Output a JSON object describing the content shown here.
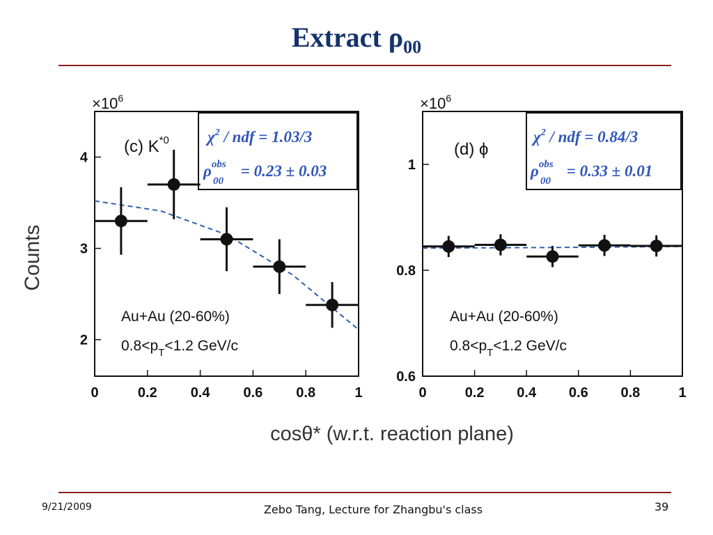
{
  "slide": {
    "title_main": "Extract ρ",
    "title_sub": "00",
    "date": "9/21/2009",
    "footer": "Zebo Tang, Lecture for Zhangbu's class",
    "page_number": "39",
    "rule_color": "#8a1f1f",
    "title_color": "#15336b"
  },
  "chart_data": [
    {
      "type": "scatter",
      "panel_label": "(c) K",
      "panel_label_sup": "*0",
      "scale_label": "×10",
      "scale_sup": "6",
      "ylabel": "Counts",
      "xlabel": "cosθ* (w.r.t. reaction plane)",
      "xlim": [
        0,
        1
      ],
      "ylim": [
        1.6,
        4.5
      ],
      "xticks": [
        0,
        0.2,
        0.4,
        0.6,
        0.8,
        1
      ],
      "xtick_labels": [
        "0",
        "0.2",
        "0.4",
        "0.6",
        "0.8",
        "1"
      ],
      "yticks": [
        2,
        3,
        4
      ],
      "ytick_labels": [
        "2",
        "3",
        "4"
      ],
      "points": [
        {
          "x": 0.1,
          "y": 3.3,
          "xerr": 0.1,
          "yerr": 0.37
        },
        {
          "x": 0.3,
          "y": 3.7,
          "xerr": 0.1,
          "yerr": 0.38
        },
        {
          "x": 0.5,
          "y": 3.1,
          "xerr": 0.1,
          "yerr": 0.35
        },
        {
          "x": 0.7,
          "y": 2.8,
          "xerr": 0.1,
          "yerr": 0.3
        },
        {
          "x": 0.9,
          "y": 2.38,
          "xerr": 0.1,
          "yerr": 0.25
        }
      ],
      "fit": {
        "style": "dashed",
        "color": "#2f5fb0",
        "x": [
          0,
          0.25,
          0.5,
          0.75,
          1
        ],
        "y": [
          3.52,
          3.41,
          3.15,
          2.71,
          2.11
        ]
      },
      "annotation": {
        "chi_prefix": "χ",
        "chi_sup": "2",
        "chi_rest": " / ndf = 1.03/3",
        "rho": "ρ",
        "rho_sup": "obs",
        "rho_sub": "00",
        "rho_rest": " = 0.23 ± 0.03",
        "color": "#2f55b8"
      },
      "system_label": "Au+Au (20-60%)",
      "pt_label_a": "0.8<p",
      "pt_label_sub": "T",
      "pt_label_b": "<1.2 GeV/c"
    },
    {
      "type": "scatter",
      "panel_label": "(d) ϕ",
      "scale_label": "×10",
      "scale_sup": "6",
      "xlim": [
        0,
        1
      ],
      "ylim": [
        0.6,
        1.1
      ],
      "xticks": [
        0,
        0.2,
        0.4,
        0.6,
        0.8,
        1
      ],
      "xtick_labels": [
        "0",
        "0.2",
        "0.4",
        "0.6",
        "0.8",
        "1"
      ],
      "yticks": [
        0.6,
        0.8,
        1
      ],
      "ytick_labels": [
        "0.6",
        "0.8",
        "1"
      ],
      "points": [
        {
          "x": 0.1,
          "y": 0.845,
          "xerr": 0.1,
          "yerr": 0.02
        },
        {
          "x": 0.3,
          "y": 0.848,
          "xerr": 0.1,
          "yerr": 0.02
        },
        {
          "x": 0.5,
          "y": 0.826,
          "xerr": 0.1,
          "yerr": 0.02
        },
        {
          "x": 0.7,
          "y": 0.847,
          "xerr": 0.1,
          "yerr": 0.02
        },
        {
          "x": 0.9,
          "y": 0.846,
          "xerr": 0.1,
          "yerr": 0.02
        }
      ],
      "fit": {
        "style": "dashed",
        "color": "#2f5fb0",
        "x": [
          0,
          0.5,
          1
        ],
        "y": [
          0.842,
          0.843,
          0.845
        ]
      },
      "annotation": {
        "chi_prefix": "χ",
        "chi_sup": "2",
        "chi_rest": " / ndf = 0.84/3",
        "rho": "ρ",
        "rho_sup": "obs",
        "rho_sub": "00",
        "rho_rest": " = 0.33 ± 0.01",
        "color": "#2f55b8"
      },
      "system_label": "Au+Au (20-60%)",
      "pt_label_a": "0.8<p",
      "pt_label_sub": "T",
      "pt_label_b": "<1.2 GeV/c"
    }
  ]
}
